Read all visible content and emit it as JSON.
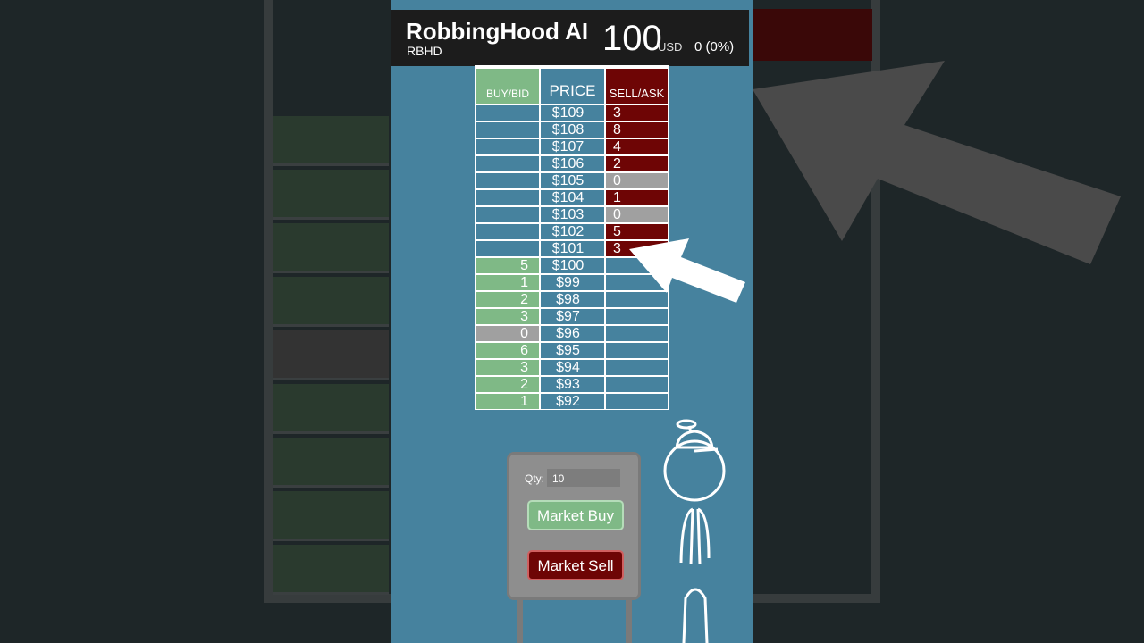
{
  "header": {
    "title": "RobbingHood AI",
    "ticker": "RBHD",
    "price": "100",
    "currency": "USD",
    "change": "0 (0%)"
  },
  "order_book": {
    "headers": {
      "buy": "BUY/BID",
      "price": "PRICE",
      "sell": "SELL/ASK"
    },
    "rows": [
      {
        "price": "$109",
        "buy": "",
        "sell": "3"
      },
      {
        "price": "$108",
        "buy": "",
        "sell": "8"
      },
      {
        "price": "$107",
        "buy": "",
        "sell": "4"
      },
      {
        "price": "$106",
        "buy": "",
        "sell": "2"
      },
      {
        "price": "$105",
        "buy": "",
        "sell": "0"
      },
      {
        "price": "$104",
        "buy": "",
        "sell": "1"
      },
      {
        "price": "$103",
        "buy": "",
        "sell": "0"
      },
      {
        "price": "$102",
        "buy": "",
        "sell": "5"
      },
      {
        "price": "$101",
        "buy": "",
        "sell": "3"
      },
      {
        "price": "$100",
        "buy": "5",
        "sell": ""
      },
      {
        "price": "$99",
        "buy": "1",
        "sell": ""
      },
      {
        "price": "$98",
        "buy": "2",
        "sell": ""
      },
      {
        "price": "$97",
        "buy": "3",
        "sell": ""
      },
      {
        "price": "$96",
        "buy": "0",
        "sell": ""
      },
      {
        "price": "$95",
        "buy": "6",
        "sell": ""
      },
      {
        "price": "$94",
        "buy": "3",
        "sell": ""
      },
      {
        "price": "$93",
        "buy": "2",
        "sell": ""
      },
      {
        "price": "$92",
        "buy": "1",
        "sell": ""
      }
    ]
  },
  "ticket": {
    "qty_label": "Qty:",
    "qty_value": "10",
    "buy_label": "Market Buy",
    "sell_label": "Market Sell"
  },
  "colors": {
    "bid": "#7fb986",
    "ask": "#6e0505",
    "zero": "#a0a0a0",
    "panel": "#46829e"
  }
}
